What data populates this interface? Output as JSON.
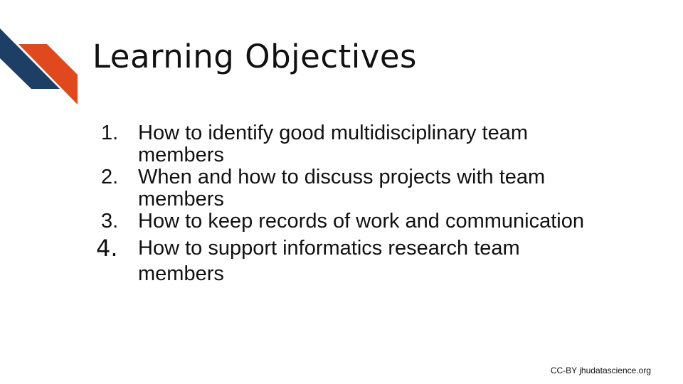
{
  "slide": {
    "title": "Learning Objectives",
    "objectives": [
      {
        "number": "1.",
        "text": "How to identify good multidisciplinary team members"
      },
      {
        "number": "2.",
        "text": "When and how to discuss projects with team members"
      },
      {
        "number": "3.",
        "text": "How to keep records of work and communication"
      },
      {
        "number": "4.",
        "text": "How to support informatics research team members"
      }
    ],
    "credit": "CC-BY jhudatascience.org"
  },
  "colors": {
    "logo_navy": "#1d3f66",
    "logo_orange": "#e0481e",
    "text": "#111111",
    "background": "#ffffff"
  },
  "icons": {
    "logo": "chevron-stripes-logo"
  }
}
